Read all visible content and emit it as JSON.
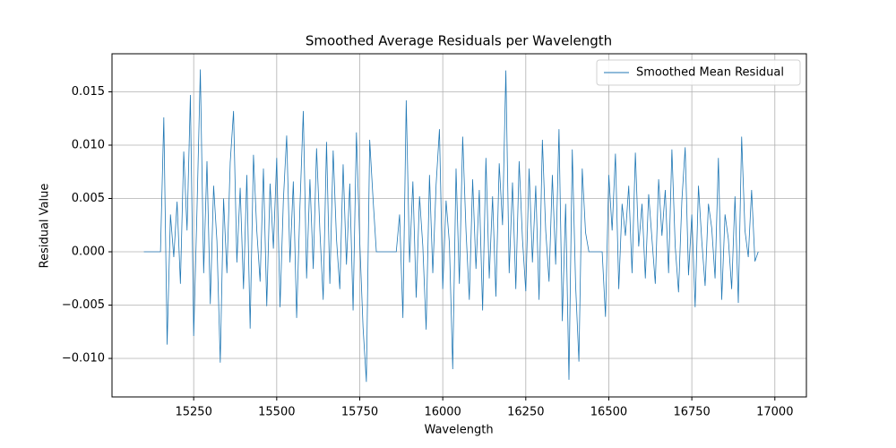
{
  "chart_data": {
    "type": "line",
    "title": "Smoothed Average Residuals per Wavelength",
    "x_label": "Wavelength",
    "y_label": "Residual Value",
    "xlim": [
      15004,
      17095
    ],
    "ylim": [
      -0.01361,
      0.01857
    ],
    "xticks": [
      15250,
      15500,
      15750,
      16000,
      16250,
      16500,
      16750,
      17000
    ],
    "yticks": [
      {
        "value": -0.01,
        "label": "−0.010"
      },
      {
        "value": -0.005,
        "label": "−0.005"
      },
      {
        "value": 0,
        "label": "0.000"
      },
      {
        "value": 0.005,
        "label": "0.005"
      },
      {
        "value": 0.01,
        "label": "0.010"
      },
      {
        "value": 0.015,
        "label": "0.015"
      }
    ],
    "grid": true,
    "legend": "upper right",
    "x": [
      15100,
      15110,
      15120,
      15130,
      15140,
      15150,
      15160,
      15170,
      15180,
      15190,
      15200,
      15210,
      15220,
      15230,
      15240,
      15250,
      15260,
      15270,
      15280,
      15290,
      15300,
      15310,
      15320,
      15330,
      15340,
      15350,
      15360,
      15370,
      15380,
      15390,
      15400,
      15410,
      15420,
      15430,
      15440,
      15450,
      15460,
      15470,
      15480,
      15490,
      15500,
      15510,
      15520,
      15530,
      15540,
      15550,
      15560,
      15570,
      15580,
      15590,
      15600,
      15610,
      15620,
      15630,
      15640,
      15650,
      15660,
      15670,
      15680,
      15690,
      15700,
      15710,
      15720,
      15730,
      15740,
      15750,
      15760,
      15770,
      15780,
      15790,
      15800,
      15810,
      15820,
      15830,
      15840,
      15850,
      15860,
      15870,
      15880,
      15890,
      15900,
      15910,
      15920,
      15930,
      15940,
      15950,
      15960,
      15970,
      15980,
      15990,
      16000,
      16010,
      16020,
      16030,
      16040,
      16050,
      16060,
      16070,
      16080,
      16090,
      16100,
      16110,
      16120,
      16130,
      16140,
      16150,
      16160,
      16170,
      16180,
      16190,
      16200,
      16210,
      16220,
      16230,
      16240,
      16250,
      16260,
      16270,
      16280,
      16290,
      16300,
      16310,
      16320,
      16330,
      16340,
      16350,
      16360,
      16370,
      16380,
      16390,
      16400,
      16410,
      16420,
      16430,
      16440,
      16450,
      16460,
      16470,
      16480,
      16490,
      16500,
      16510,
      16520,
      16530,
      16540,
      16550,
      16560,
      16570,
      16580,
      16590,
      16600,
      16610,
      16620,
      16630,
      16640,
      16650,
      16660,
      16670,
      16680,
      16690,
      16700,
      16710,
      16720,
      16730,
      16740,
      16750,
      16760,
      16770,
      16780,
      16790,
      16800,
      16810,
      16820,
      16830,
      16840,
      16850,
      16860,
      16870,
      16880,
      16890,
      16900,
      16910,
      16920,
      16930,
      16940,
      16950
    ],
    "series": [
      {
        "name": "Smoothed Mean Residual",
        "color": "#1f77b4",
        "values": [
          0,
          0,
          0,
          0,
          0,
          0,
          0.0126,
          -0.0087,
          0.0035,
          -0.0005,
          0.0047,
          -0.003,
          0.0094,
          0.002,
          0.0147,
          -0.0079,
          0.004,
          0.0171,
          -0.002,
          0.0085,
          -0.0049,
          0.0062,
          0.001,
          -0.0104,
          0.005,
          -0.002,
          0.0084,
          0.0132,
          -0.001,
          0.006,
          -0.0035,
          0.0072,
          -0.0072,
          0.0091,
          0.002,
          -0.0028,
          0.0078,
          -0.0051,
          0.0064,
          0.0003,
          0.0088,
          -0.0052,
          0.0048,
          0.0109,
          -0.001,
          0.0066,
          -0.0062,
          0.0043,
          0.0132,
          -0.0025,
          0.0068,
          -0.0016,
          0.0097,
          0.002,
          -0.0045,
          0.0103,
          -0.003,
          0.0095,
          0.0012,
          -0.0035,
          0.0082,
          -0.0012,
          0.0064,
          -0.0055,
          0.0112,
          0.001,
          -0.0071,
          -0.0122,
          0.0105,
          0.005,
          0,
          0,
          0,
          0,
          0,
          0,
          0,
          0.0035,
          -0.0062,
          0.0142,
          -0.001,
          0.0066,
          -0.0043,
          0.0052,
          0.0005,
          -0.0073,
          0.0072,
          -0.002,
          0.0063,
          0.0115,
          -0.0035,
          0.0048,
          0.0008,
          -0.011,
          0.0078,
          -0.003,
          0.0108,
          0.002,
          -0.0045,
          0.0068,
          -0.0016,
          0.0058,
          -0.0055,
          0.0088,
          -0.0025,
          0.0052,
          -0.0042,
          0.0083,
          0.0025,
          0.017,
          -0.002,
          0.0065,
          -0.0035,
          0.0085,
          0.0012,
          -0.0037,
          0.0078,
          -0.001,
          0.0062,
          -0.0045,
          0.0105,
          0.002,
          -0.0028,
          0.0072,
          -0.0012,
          0.0115,
          -0.0065,
          0.0045,
          -0.012,
          0.0096,
          -0.0031,
          -0.0103,
          0.0078,
          0.0018,
          0,
          0,
          0,
          0,
          0,
          -0.0061,
          0.0072,
          0.002,
          0.0092,
          -0.0035,
          0.0045,
          0.0015,
          0.0062,
          -0.002,
          0.0093,
          0.0005,
          0.0045,
          -0.0025,
          0.0054,
          0.0012,
          -0.003,
          0.0068,
          0.0015,
          0.0058,
          -0.002,
          0.0096,
          0.0005,
          -0.0038,
          0.0048,
          0.0098,
          -0.0022,
          0.0035,
          -0.0052,
          0.0062,
          0.001,
          -0.0032,
          0.0045,
          0.0022,
          -0.0025,
          0.0088,
          -0.0045,
          0.0035,
          0.0012,
          -0.0035,
          0.0052,
          -0.0048,
          0.0108,
          0.002,
          -0.0005,
          0.0058,
          -0.0009,
          0
        ]
      }
    ]
  }
}
